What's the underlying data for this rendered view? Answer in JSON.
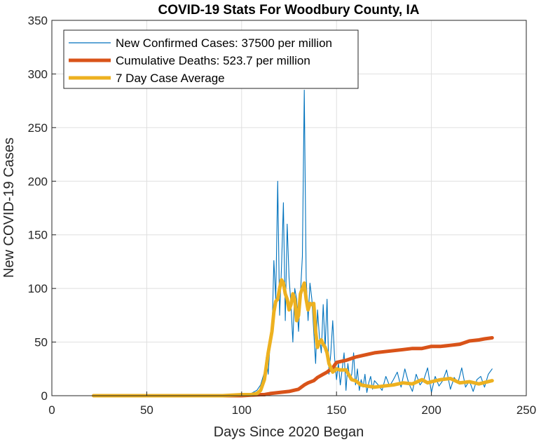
{
  "chart_data": {
    "type": "line",
    "title": "COVID-19 Stats For Woodbury County, IA",
    "xlabel": "Days Since 2020 Began",
    "ylabel": "New COVID-19 Cases",
    "xlim": [
      0,
      250
    ],
    "ylim": [
      0,
      350
    ],
    "xticks": [
      0,
      50,
      100,
      150,
      200,
      250
    ],
    "yticks": [
      0,
      50,
      100,
      150,
      200,
      250,
      300,
      350
    ],
    "grid": true,
    "legend_position": "top-left",
    "series": [
      {
        "name": "New Confirmed Cases: 37500 per million",
        "color": "#0072BD",
        "style": "thin",
        "x": [
          22,
          60,
          80,
          90,
          95,
          100,
          103,
          106,
          108,
          110,
          112,
          113,
          114,
          115,
          116,
          117,
          118,
          119,
          120,
          121,
          122,
          123,
          124,
          125,
          126,
          127,
          128,
          129,
          130,
          131,
          132,
          133,
          134,
          135,
          136,
          137,
          138,
          139,
          140,
          141,
          142,
          143,
          144,
          145,
          146,
          147,
          148,
          149,
          150,
          151,
          152,
          153,
          154,
          155,
          156,
          157,
          158,
          159,
          160,
          161,
          162,
          163,
          164,
          165,
          166,
          167,
          168,
          169,
          170,
          172,
          174,
          176,
          178,
          180,
          182,
          184,
          186,
          188,
          190,
          192,
          194,
          196,
          198,
          200,
          202,
          204,
          206,
          208,
          210,
          212,
          214,
          216,
          218,
          220,
          222,
          224,
          226,
          228,
          230,
          232
        ],
        "y": [
          0,
          0,
          0,
          1,
          1,
          2,
          0,
          3,
          5,
          10,
          22,
          36,
          20,
          48,
          55,
          126,
          90,
          200,
          75,
          120,
          180,
          70,
          160,
          110,
          85,
          50,
          100,
          90,
          60,
          95,
          130,
          285,
          110,
          70,
          105,
          90,
          60,
          30,
          80,
          55,
          40,
          85,
          45,
          90,
          20,
          40,
          70,
          35,
          15,
          30,
          10,
          25,
          40,
          5,
          30,
          15,
          20,
          40,
          10,
          25,
          5,
          15,
          8,
          20,
          3,
          12,
          18,
          6,
          14,
          10,
          5,
          18,
          9,
          15,
          22,
          8,
          25,
          12,
          4,
          20,
          10,
          15,
          26,
          3,
          18,
          9,
          14,
          24,
          6,
          17,
          12,
          26,
          8,
          14,
          4,
          15,
          18,
          8,
          20,
          25
        ]
      },
      {
        "name": "Cumulative Deaths: 523.7 per million",
        "color": "#D95319",
        "style": "thick",
        "x": [
          22,
          100,
          110,
          112,
          115,
          120,
          125,
          130,
          133,
          135,
          138,
          140,
          143,
          145,
          148,
          150,
          155,
          160,
          165,
          170,
          175,
          180,
          185,
          190,
          195,
          200,
          205,
          210,
          215,
          220,
          225,
          228,
          232
        ],
        "y": [
          0,
          0,
          1,
          1,
          2,
          3,
          4,
          6,
          10,
          12,
          14,
          17,
          20,
          22,
          26,
          31,
          33,
          36,
          38,
          40,
          41,
          42,
          43,
          44,
          44,
          46,
          46,
          47,
          48,
          51,
          52,
          53,
          54
        ]
      },
      {
        "name": "7 Day Case Average",
        "color": "#EDB120",
        "style": "thick",
        "x": [
          22,
          90,
          100,
          105,
          108,
          110,
          112,
          114,
          116,
          117,
          118,
          119,
          120,
          121,
          122,
          123,
          124,
          125,
          126,
          127,
          128,
          129,
          130,
          131,
          132,
          133,
          134,
          135,
          136,
          137,
          138,
          139,
          140,
          141,
          142,
          143,
          144,
          145,
          146,
          147,
          148,
          150,
          152,
          155,
          158,
          160,
          163,
          166,
          170,
          175,
          180,
          185,
          190,
          195,
          198,
          200,
          205,
          210,
          215,
          220,
          225,
          232
        ],
        "y": [
          0,
          0,
          1,
          1,
          2,
          5,
          15,
          40,
          60,
          78,
          88,
          90,
          100,
          108,
          105,
          95,
          90,
          80,
          85,
          95,
          90,
          70,
          75,
          95,
          100,
          105,
          90,
          80,
          86,
          85,
          86,
          60,
          45,
          50,
          52,
          48,
          45,
          40,
          30,
          26,
          22,
          25,
          24,
          24,
          15,
          14,
          10,
          9,
          8,
          9,
          10,
          12,
          11,
          15,
          12,
          13,
          15,
          16,
          12,
          13,
          11,
          14
        ]
      }
    ]
  }
}
